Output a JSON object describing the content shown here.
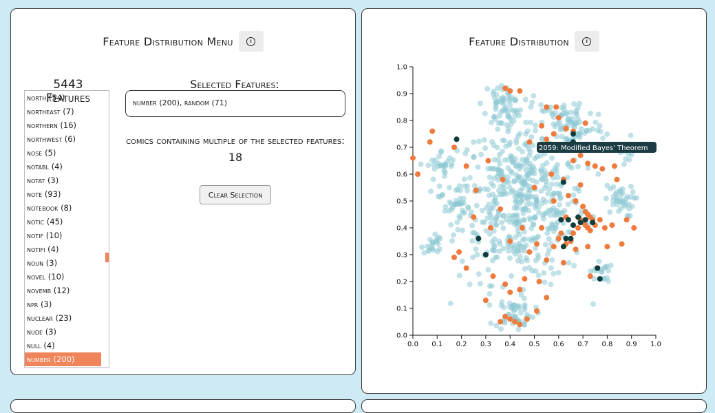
{
  "menu": {
    "title": "Feature Distribution Menu",
    "info_icon": "info-circle-icon",
    "feature_count_label": "5443 Features",
    "features": [
      "north (54)",
      "northeast (7)",
      "northern (16)",
      "northwest (6)",
      "nose (5)",
      "notabl (4)",
      "notat (3)",
      "note (93)",
      "notebook (8)",
      "notic (45)",
      "notif (10)",
      "notifi (4)",
      "noun (3)",
      "novel (10)",
      "novemb (12)",
      "npr (3)",
      "nuclear (23)",
      "nude (3)",
      "null (4)",
      "number (200)"
    ],
    "selected_feature": "number (200)",
    "selected_heading": "Selected Features:",
    "selected_value": "number (200), random (71)",
    "multi_text": "comics containing multiple of the selected features:",
    "multi_count": "18",
    "clear_label": "Clear Selection"
  },
  "distribution": {
    "title": "Feature Distribution",
    "info_icon": "info-circle-icon",
    "tooltip": "2059: Modified Bayes' Theorem",
    "colors": {
      "base": "#8cc8d4",
      "selected": "#ee7a3c",
      "multi": "#0f3c3c",
      "accent": "#f0845a"
    }
  },
  "chart_data": {
    "type": "scatter",
    "xlim": [
      0.0,
      1.0
    ],
    "ylim": [
      0.0,
      1.0
    ],
    "xticks": [
      "0.0",
      "0.1",
      "0.2",
      "0.3",
      "0.4",
      "0.5",
      "0.6",
      "0.7",
      "0.8",
      "0.9",
      "1.0"
    ],
    "yticks": [
      "0.0",
      "0.1",
      "0.2",
      "0.3",
      "0.4",
      "0.5",
      "0.6",
      "0.7",
      "0.8",
      "0.9",
      "1.0"
    ],
    "grid": false,
    "clusters": [
      {
        "cx": 0.45,
        "cy": 0.5,
        "sx": 0.13,
        "sy": 0.15,
        "n": 520
      },
      {
        "cx": 0.37,
        "cy": 0.86,
        "sx": 0.04,
        "sy": 0.04,
        "n": 60
      },
      {
        "cx": 0.65,
        "cy": 0.78,
        "sx": 0.07,
        "sy": 0.05,
        "n": 80
      },
      {
        "cx": 0.12,
        "cy": 0.63,
        "sx": 0.03,
        "sy": 0.03,
        "n": 25
      },
      {
        "cx": 0.08,
        "cy": 0.34,
        "sx": 0.02,
        "sy": 0.02,
        "n": 20
      },
      {
        "cx": 0.42,
        "cy": 0.08,
        "sx": 0.04,
        "sy": 0.03,
        "n": 50
      },
      {
        "cx": 0.85,
        "cy": 0.5,
        "sx": 0.03,
        "sy": 0.03,
        "n": 40
      },
      {
        "cx": 0.77,
        "cy": 0.24,
        "sx": 0.02,
        "sy": 0.02,
        "n": 18
      },
      {
        "cx": 0.17,
        "cy": 0.5,
        "sx": 0.03,
        "sy": 0.04,
        "n": 35
      },
      {
        "cx": 0.88,
        "cy": 0.68,
        "sx": 0.02,
        "sy": 0.03,
        "n": 14
      }
    ],
    "orange_points": [
      [
        0.38,
        0.92
      ],
      [
        0.4,
        0.91
      ],
      [
        0.44,
        0.91
      ],
      [
        0.55,
        0.85
      ],
      [
        0.59,
        0.85
      ],
      [
        0.6,
        0.81
      ],
      [
        0.63,
        0.77
      ],
      [
        0.66,
        0.76
      ],
      [
        0.71,
        0.79
      ],
      [
        0.08,
        0.76
      ],
      [
        0.07,
        0.72
      ],
      [
        0.17,
        0.7
      ],
      [
        0.0,
        0.66
      ],
      [
        0.02,
        0.6
      ],
      [
        0.48,
        0.72
      ],
      [
        0.55,
        0.73
      ],
      [
        0.58,
        0.75
      ],
      [
        0.62,
        0.7
      ],
      [
        0.66,
        0.65
      ],
      [
        0.69,
        0.67
      ],
      [
        0.72,
        0.64
      ],
      [
        0.73,
        0.69
      ],
      [
        0.75,
        0.63
      ],
      [
        0.78,
        0.62
      ],
      [
        0.57,
        0.6
      ],
      [
        0.62,
        0.58
      ],
      [
        0.64,
        0.52
      ],
      [
        0.67,
        0.5
      ],
      [
        0.7,
        0.48
      ],
      [
        0.71,
        0.46
      ],
      [
        0.72,
        0.45
      ],
      [
        0.73,
        0.44
      ],
      [
        0.74,
        0.43
      ],
      [
        0.69,
        0.43
      ],
      [
        0.7,
        0.42
      ],
      [
        0.71,
        0.41
      ],
      [
        0.72,
        0.4
      ],
      [
        0.68,
        0.4
      ],
      [
        0.73,
        0.39
      ],
      [
        0.66,
        0.38
      ],
      [
        0.75,
        0.41
      ],
      [
        0.77,
        0.43
      ],
      [
        0.79,
        0.4
      ],
      [
        0.82,
        0.41
      ],
      [
        0.88,
        0.43
      ],
      [
        0.91,
        0.4
      ],
      [
        0.63,
        0.44
      ],
      [
        0.61,
        0.38
      ],
      [
        0.6,
        0.36
      ],
      [
        0.63,
        0.34
      ],
      [
        0.65,
        0.35
      ],
      [
        0.58,
        0.33
      ],
      [
        0.67,
        0.32
      ],
      [
        0.72,
        0.33
      ],
      [
        0.8,
        0.33
      ],
      [
        0.86,
        0.34
      ],
      [
        0.55,
        0.28
      ],
      [
        0.62,
        0.27
      ],
      [
        0.76,
        0.25
      ],
      [
        0.73,
        0.22
      ],
      [
        0.17,
        0.29
      ],
      [
        0.19,
        0.31
      ],
      [
        0.22,
        0.25
      ],
      [
        0.25,
        0.44
      ],
      [
        0.32,
        0.4
      ],
      [
        0.36,
        0.47
      ],
      [
        0.4,
        0.35
      ],
      [
        0.45,
        0.4
      ],
      [
        0.48,
        0.31
      ],
      [
        0.51,
        0.34
      ],
      [
        0.53,
        0.4
      ],
      [
        0.58,
        0.5
      ],
      [
        0.33,
        0.22
      ],
      [
        0.38,
        0.19
      ],
      [
        0.4,
        0.16
      ],
      [
        0.44,
        0.17
      ],
      [
        0.46,
        0.21
      ],
      [
        0.52,
        0.2
      ],
      [
        0.55,
        0.14
      ],
      [
        0.51,
        0.09
      ],
      [
        0.38,
        0.07
      ],
      [
        0.4,
        0.06
      ],
      [
        0.42,
        0.05
      ],
      [
        0.44,
        0.04
      ],
      [
        0.36,
        0.05
      ],
      [
        0.47,
        0.06
      ],
      [
        0.3,
        0.13
      ],
      [
        0.26,
        0.54
      ],
      [
        0.22,
        0.63
      ],
      [
        0.31,
        0.65
      ],
      [
        0.5,
        0.55
      ],
      [
        0.69,
        0.56
      ],
      [
        0.84,
        0.58
      ],
      [
        0.83,
        0.63
      ],
      [
        0.53,
        0.78
      ],
      [
        0.37,
        0.58
      ]
    ],
    "multi_points": [
      [
        0.18,
        0.73
      ],
      [
        0.66,
        0.75
      ],
      [
        0.62,
        0.57
      ],
      [
        0.64,
        0.43
      ],
      [
        0.66,
        0.41
      ],
      [
        0.68,
        0.44
      ],
      [
        0.63,
        0.36
      ],
      [
        0.65,
        0.36
      ],
      [
        0.27,
        0.36
      ],
      [
        0.76,
        0.25
      ],
      [
        0.77,
        0.21
      ],
      [
        0.69,
        0.42
      ],
      [
        0.3,
        0.3
      ],
      [
        0.61,
        0.43
      ],
      [
        0.71,
        0.43
      ],
      [
        0.66,
        0.72
      ],
      [
        0.62,
        0.33
      ],
      [
        0.74,
        0.42
      ]
    ]
  }
}
